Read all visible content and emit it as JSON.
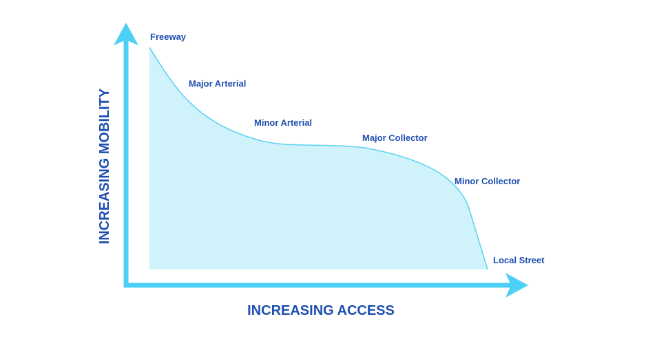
{
  "colors": {
    "axis": "#4dd0f5",
    "fill": "#cff2fb",
    "curve": "#5ad2f3",
    "text": "#1f4fb0"
  },
  "axes": {
    "x_title": "INCREASING ACCESS",
    "y_title": "INCREASING MOBILITY"
  },
  "labels": {
    "freeway": "Freeway",
    "major_arterial": "Major Arterial",
    "minor_arterial": "Minor Arterial",
    "major_collector": "Major Collector",
    "minor_collector": "Minor Collector",
    "local_street": "Local Street"
  }
}
